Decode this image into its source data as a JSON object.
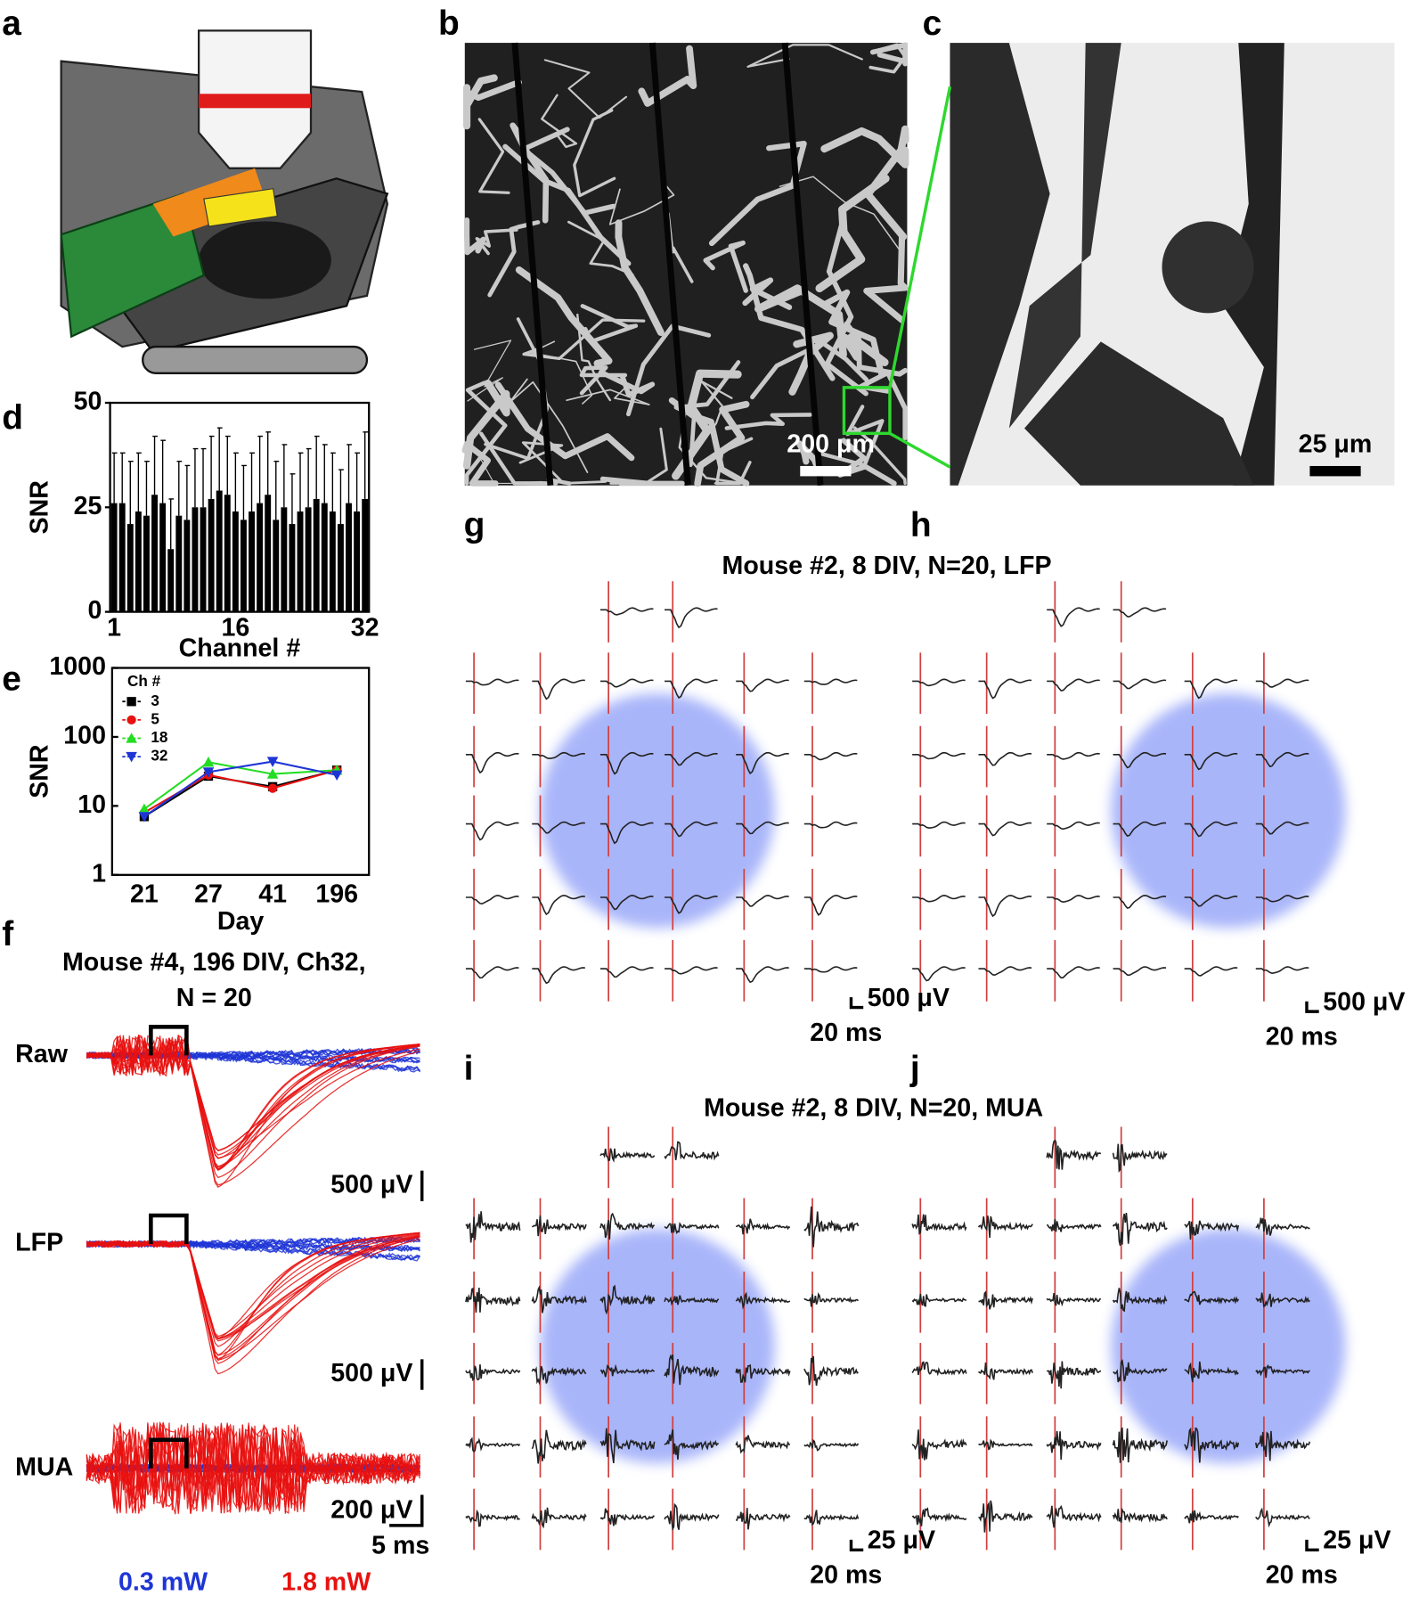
{
  "panel_labels": [
    "a",
    "b",
    "c",
    "d",
    "e",
    "f",
    "g",
    "h",
    "i",
    "j"
  ],
  "b": {
    "scale_label": "200 μm"
  },
  "c": {
    "scale_label": "25 μm"
  },
  "f": {
    "title_lines": [
      "Mouse #4, 196 DIV, Ch32,",
      "N = 20"
    ],
    "traces": [
      "Raw",
      "LFP",
      "MUA"
    ],
    "amp_scales": [
      "500 μV",
      "500 μV",
      "200 μV"
    ],
    "time_scale": "5 ms",
    "legend": [
      "0.3 mW",
      "1.8 mW"
    ],
    "legend_colors": [
      "#1e35d6",
      "#e8110f"
    ]
  },
  "gh": {
    "title": "Mouse #2, 8 DIV, N=20, LFP",
    "g_scale": [
      "500 μV",
      "20 ms"
    ],
    "h_scale": [
      "500 μV",
      "20 ms"
    ]
  },
  "ij": {
    "title": "Mouse #2, 8 DIV, N=20, MUA",
    "i_scale": [
      "25 μV",
      "20 ms"
    ],
    "j_scale": [
      "25 μV",
      "20 ms"
    ]
  },
  "chart_data": [
    {
      "type": "bar",
      "xlabel": "Channel #",
      "ylabel": "SNR",
      "color": "#000000",
      "categories": [
        "1",
        null,
        null,
        null,
        null,
        null,
        null,
        null,
        null,
        null,
        null,
        null,
        null,
        null,
        null,
        "16",
        null,
        null,
        null,
        null,
        null,
        null,
        null,
        null,
        null,
        null,
        null,
        null,
        null,
        null,
        null,
        "32"
      ],
      "values": [
        26,
        26,
        21,
        24,
        23,
        28,
        26,
        15,
        23,
        22,
        25,
        25,
        27,
        29,
        28,
        24,
        22,
        24,
        26,
        28,
        22,
        25,
        21,
        24,
        25,
        27,
        26,
        24,
        21,
        26,
        24,
        27
      ],
      "errors": [
        12,
        12,
        15,
        14,
        13,
        14,
        15,
        12,
        13,
        13,
        14,
        14,
        15,
        15,
        14,
        14,
        13,
        14,
        16,
        15,
        14,
        15,
        12,
        14,
        14,
        15,
        14,
        14,
        13,
        14,
        14,
        16
      ],
      "ylim": [
        0,
        50
      ],
      "yticks": [
        0,
        25,
        50
      ]
    },
    {
      "type": "line",
      "xlabel": "Day",
      "ylabel": "SNR",
      "log_y": true,
      "legend_title": "Ch #",
      "legend": "upper left",
      "categories": [
        "21",
        "27",
        "41",
        "196"
      ],
      "series": [
        {
          "name": "3",
          "color": "#000000",
          "marker": "square",
          "values": [
            7,
            27,
            19,
            33
          ]
        },
        {
          "name": "5",
          "color": "#e8110f",
          "marker": "circle",
          "values": [
            8,
            28,
            18,
            33
          ]
        },
        {
          "name": "18",
          "color": "#22dd22",
          "marker": "triangle-up",
          "values": [
            9,
            43,
            29,
            33
          ]
        },
        {
          "name": "32",
          "color": "#1e35d6",
          "marker": "triangle-down",
          "values": [
            7,
            31,
            44,
            28
          ]
        }
      ],
      "ylim": [
        1,
        1000
      ],
      "yticks": [
        1,
        10,
        100,
        1000
      ]
    }
  ]
}
